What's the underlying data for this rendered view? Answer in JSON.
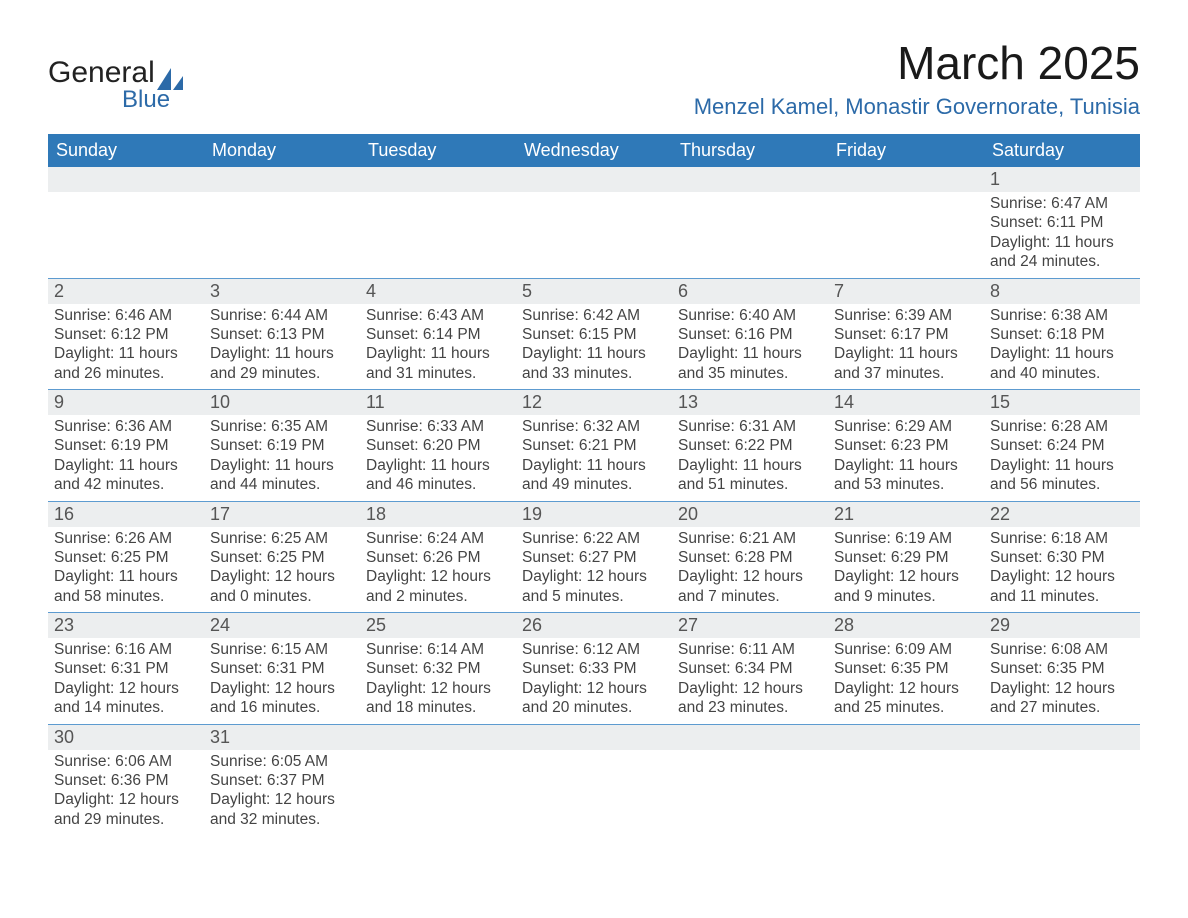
{
  "brand": {
    "name1": "General",
    "name2": "Blue",
    "accent": "#2c6aa8"
  },
  "title": "March 2025",
  "location": "Menzel Kamel, Monastir Governorate, Tunisia",
  "header_bg": "#2f79b8",
  "strip_bg": "#eceeef",
  "rule_color": "#5d9bd0",
  "days_of_week": [
    "Sunday",
    "Monday",
    "Tuesday",
    "Wednesday",
    "Thursday",
    "Friday",
    "Saturday"
  ],
  "weeks": [
    [
      null,
      null,
      null,
      null,
      null,
      null,
      {
        "n": "1",
        "sunrise": "Sunrise: 6:47 AM",
        "sunset": "Sunset: 6:11 PM",
        "dl1": "Daylight: 11 hours",
        "dl2": "and 24 minutes."
      }
    ],
    [
      {
        "n": "2",
        "sunrise": "Sunrise: 6:46 AM",
        "sunset": "Sunset: 6:12 PM",
        "dl1": "Daylight: 11 hours",
        "dl2": "and 26 minutes."
      },
      {
        "n": "3",
        "sunrise": "Sunrise: 6:44 AM",
        "sunset": "Sunset: 6:13 PM",
        "dl1": "Daylight: 11 hours",
        "dl2": "and 29 minutes."
      },
      {
        "n": "4",
        "sunrise": "Sunrise: 6:43 AM",
        "sunset": "Sunset: 6:14 PM",
        "dl1": "Daylight: 11 hours",
        "dl2": "and 31 minutes."
      },
      {
        "n": "5",
        "sunrise": "Sunrise: 6:42 AM",
        "sunset": "Sunset: 6:15 PM",
        "dl1": "Daylight: 11 hours",
        "dl2": "and 33 minutes."
      },
      {
        "n": "6",
        "sunrise": "Sunrise: 6:40 AM",
        "sunset": "Sunset: 6:16 PM",
        "dl1": "Daylight: 11 hours",
        "dl2": "and 35 minutes."
      },
      {
        "n": "7",
        "sunrise": "Sunrise: 6:39 AM",
        "sunset": "Sunset: 6:17 PM",
        "dl1": "Daylight: 11 hours",
        "dl2": "and 37 minutes."
      },
      {
        "n": "8",
        "sunrise": "Sunrise: 6:38 AM",
        "sunset": "Sunset: 6:18 PM",
        "dl1": "Daylight: 11 hours",
        "dl2": "and 40 minutes."
      }
    ],
    [
      {
        "n": "9",
        "sunrise": "Sunrise: 6:36 AM",
        "sunset": "Sunset: 6:19 PM",
        "dl1": "Daylight: 11 hours",
        "dl2": "and 42 minutes."
      },
      {
        "n": "10",
        "sunrise": "Sunrise: 6:35 AM",
        "sunset": "Sunset: 6:19 PM",
        "dl1": "Daylight: 11 hours",
        "dl2": "and 44 minutes."
      },
      {
        "n": "11",
        "sunrise": "Sunrise: 6:33 AM",
        "sunset": "Sunset: 6:20 PM",
        "dl1": "Daylight: 11 hours",
        "dl2": "and 46 minutes."
      },
      {
        "n": "12",
        "sunrise": "Sunrise: 6:32 AM",
        "sunset": "Sunset: 6:21 PM",
        "dl1": "Daylight: 11 hours",
        "dl2": "and 49 minutes."
      },
      {
        "n": "13",
        "sunrise": "Sunrise: 6:31 AM",
        "sunset": "Sunset: 6:22 PM",
        "dl1": "Daylight: 11 hours",
        "dl2": "and 51 minutes."
      },
      {
        "n": "14",
        "sunrise": "Sunrise: 6:29 AM",
        "sunset": "Sunset: 6:23 PM",
        "dl1": "Daylight: 11 hours",
        "dl2": "and 53 minutes."
      },
      {
        "n": "15",
        "sunrise": "Sunrise: 6:28 AM",
        "sunset": "Sunset: 6:24 PM",
        "dl1": "Daylight: 11 hours",
        "dl2": "and 56 minutes."
      }
    ],
    [
      {
        "n": "16",
        "sunrise": "Sunrise: 6:26 AM",
        "sunset": "Sunset: 6:25 PM",
        "dl1": "Daylight: 11 hours",
        "dl2": "and 58 minutes."
      },
      {
        "n": "17",
        "sunrise": "Sunrise: 6:25 AM",
        "sunset": "Sunset: 6:25 PM",
        "dl1": "Daylight: 12 hours",
        "dl2": "and 0 minutes."
      },
      {
        "n": "18",
        "sunrise": "Sunrise: 6:24 AM",
        "sunset": "Sunset: 6:26 PM",
        "dl1": "Daylight: 12 hours",
        "dl2": "and 2 minutes."
      },
      {
        "n": "19",
        "sunrise": "Sunrise: 6:22 AM",
        "sunset": "Sunset: 6:27 PM",
        "dl1": "Daylight: 12 hours",
        "dl2": "and 5 minutes."
      },
      {
        "n": "20",
        "sunrise": "Sunrise: 6:21 AM",
        "sunset": "Sunset: 6:28 PM",
        "dl1": "Daylight: 12 hours",
        "dl2": "and 7 minutes."
      },
      {
        "n": "21",
        "sunrise": "Sunrise: 6:19 AM",
        "sunset": "Sunset: 6:29 PM",
        "dl1": "Daylight: 12 hours",
        "dl2": "and 9 minutes."
      },
      {
        "n": "22",
        "sunrise": "Sunrise: 6:18 AM",
        "sunset": "Sunset: 6:30 PM",
        "dl1": "Daylight: 12 hours",
        "dl2": "and 11 minutes."
      }
    ],
    [
      {
        "n": "23",
        "sunrise": "Sunrise: 6:16 AM",
        "sunset": "Sunset: 6:31 PM",
        "dl1": "Daylight: 12 hours",
        "dl2": "and 14 minutes."
      },
      {
        "n": "24",
        "sunrise": "Sunrise: 6:15 AM",
        "sunset": "Sunset: 6:31 PM",
        "dl1": "Daylight: 12 hours",
        "dl2": "and 16 minutes."
      },
      {
        "n": "25",
        "sunrise": "Sunrise: 6:14 AM",
        "sunset": "Sunset: 6:32 PM",
        "dl1": "Daylight: 12 hours",
        "dl2": "and 18 minutes."
      },
      {
        "n": "26",
        "sunrise": "Sunrise: 6:12 AM",
        "sunset": "Sunset: 6:33 PM",
        "dl1": "Daylight: 12 hours",
        "dl2": "and 20 minutes."
      },
      {
        "n": "27",
        "sunrise": "Sunrise: 6:11 AM",
        "sunset": "Sunset: 6:34 PM",
        "dl1": "Daylight: 12 hours",
        "dl2": "and 23 minutes."
      },
      {
        "n": "28",
        "sunrise": "Sunrise: 6:09 AM",
        "sunset": "Sunset: 6:35 PM",
        "dl1": "Daylight: 12 hours",
        "dl2": "and 25 minutes."
      },
      {
        "n": "29",
        "sunrise": "Sunrise: 6:08 AM",
        "sunset": "Sunset: 6:35 PM",
        "dl1": "Daylight: 12 hours",
        "dl2": "and 27 minutes."
      }
    ],
    [
      {
        "n": "30",
        "sunrise": "Sunrise: 6:06 AM",
        "sunset": "Sunset: 6:36 PM",
        "dl1": "Daylight: 12 hours",
        "dl2": "and 29 minutes."
      },
      {
        "n": "31",
        "sunrise": "Sunrise: 6:05 AM",
        "sunset": "Sunset: 6:37 PM",
        "dl1": "Daylight: 12 hours",
        "dl2": "and 32 minutes."
      },
      null,
      null,
      null,
      null,
      null
    ]
  ]
}
